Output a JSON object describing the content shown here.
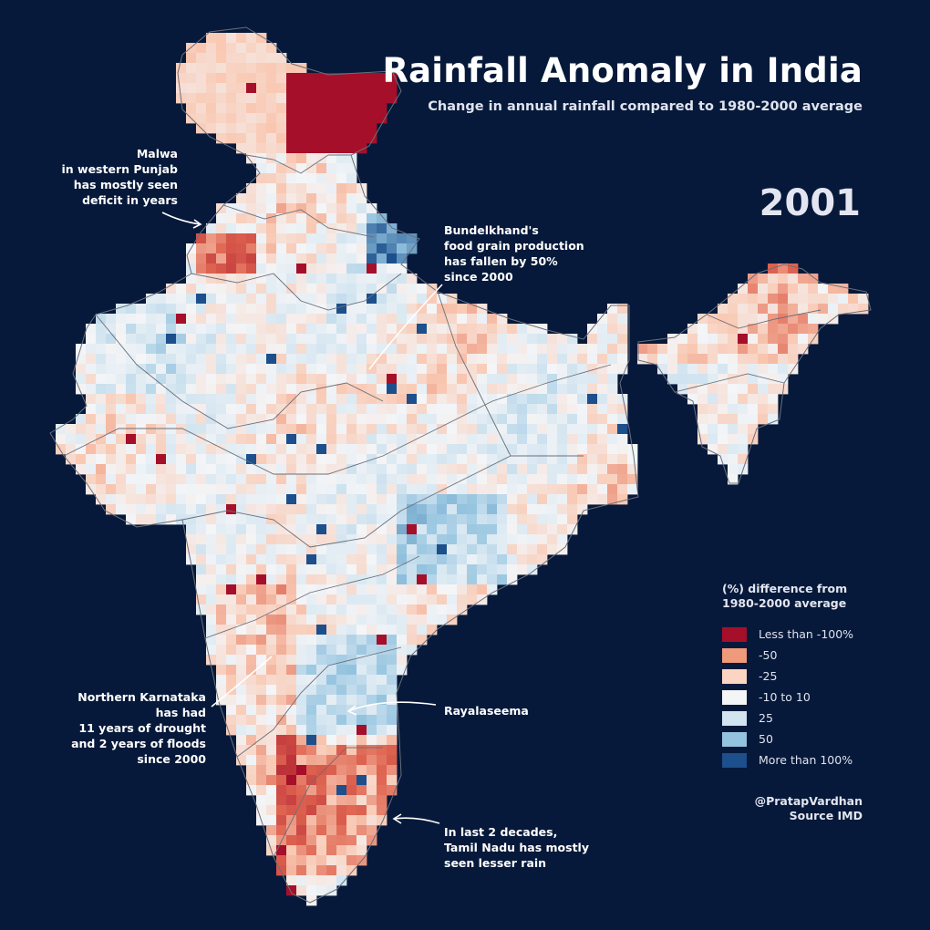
{
  "header": {
    "title": "Rainfall Anomaly in India",
    "subtitle": "Change in annual rainfall compared to 1980-2000 average",
    "year": "2001"
  },
  "annotations": [
    {
      "id": "malwa",
      "lines": [
        "Malwa",
        "in western Punjab",
        "has mostly seen",
        "deficit in years"
      ]
    },
    {
      "id": "bundelkhand",
      "lines": [
        "Bundelkhand's",
        "food grain production",
        "has fallen by 50%",
        "since 2000"
      ]
    },
    {
      "id": "karnataka",
      "lines": [
        "Northern Karnataka",
        "has had",
        "11 years of drought",
        "and 2 years of floods",
        "since 2000"
      ]
    },
    {
      "id": "rayalaseema",
      "lines": [
        "Rayalaseema"
      ]
    },
    {
      "id": "tamilnadu",
      "lines": [
        "In last 2 decades,",
        "Tamil Nadu has mostly",
        "seen lesser rain"
      ]
    }
  ],
  "legend": {
    "title_lines": [
      "(%) difference from",
      "1980-2000 average"
    ],
    "items": [
      {
        "label": "Less than -100%",
        "color": "#a50f2a"
      },
      {
        "label": "-50",
        "color": "#ef9a7a"
      },
      {
        "label": "-25",
        "color": "#fbd5c2"
      },
      {
        "label": "-10 to 10",
        "color": "#f4f5f7"
      },
      {
        "label": "25",
        "color": "#d1e4f0"
      },
      {
        "label": "50",
        "color": "#93c3df"
      },
      {
        "label": "More than 100%",
        "color": "#1c4f8c"
      }
    ]
  },
  "credit": {
    "author": "@PratapVardhan",
    "source": "Source IMD"
  },
  "colors": {
    "background": "#06193a",
    "border": "#6b6f7a"
  }
}
